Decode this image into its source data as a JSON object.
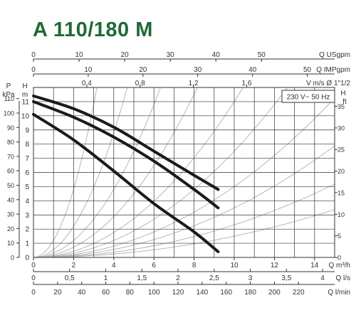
{
  "title": "A 110/180 M",
  "colors": {
    "title": "#1f6a36",
    "grid": "#333333",
    "curve": "#1a1a1a",
    "system": "#b0b0b0"
  },
  "chart_data": {
    "type": "line",
    "title": "A 110/180 M",
    "annotation": "230 V~ 50 Hz",
    "grid": true,
    "xlim": [
      0,
      15
    ],
    "ylim": [
      0,
      12
    ],
    "series": [
      {
        "name": "",
        "x": [
          0,
          2,
          4,
          6,
          8,
          9.2
        ],
        "y": [
          11.4,
          10.5,
          9.2,
          7.5,
          5.8,
          4.8
        ]
      },
      {
        "name": "",
        "x": [
          0,
          2,
          4,
          6,
          8,
          9.2
        ],
        "y": [
          11.0,
          9.9,
          8.5,
          6.8,
          4.8,
          3.5
        ]
      },
      {
        "name": "",
        "x": [
          0,
          2,
          4,
          6,
          8,
          9.2
        ],
        "y": [
          10.1,
          8.3,
          6.1,
          3.8,
          1.8,
          0.4
        ]
      }
    ],
    "system_curves_k": [
      1.2,
      0.55,
      0.3,
      0.18,
      0.11,
      0.075,
      0.05,
      0.035,
      0.023,
      0.015
    ],
    "axes": {
      "bottom": [
        {
          "unit": "Q m³/h",
          "max": 15,
          "ticks": [
            "0",
            "2",
            "4",
            "6",
            "8",
            "10",
            "12",
            "14"
          ],
          "values": [
            0,
            2,
            4,
            6,
            8,
            10,
            12,
            14
          ]
        },
        {
          "unit": "Q l/s",
          "max": 4.1667,
          "ticks": [
            "0",
            "0,5",
            "1",
            "1,5",
            "2",
            "2,5",
            "3",
            "3,5",
            "4"
          ],
          "values": [
            0,
            0.5,
            1,
            1.5,
            2,
            2.5,
            3,
            3.5,
            4
          ]
        },
        {
          "unit": "Q l/min",
          "max": 250,
          "ticks": [
            "0",
            "20",
            "40",
            "60",
            "80",
            "100",
            "120",
            "140",
            "160",
            "180",
            "200",
            "220"
          ],
          "values": [
            0,
            20,
            40,
            60,
            80,
            100,
            120,
            140,
            160,
            180,
            200,
            220
          ]
        }
      ],
      "top": [
        {
          "unit": "Q USgpm",
          "max": 66.04,
          "ticks": [
            "0",
            "10",
            "20",
            "30",
            "40",
            "50"
          ],
          "values": [
            0,
            10,
            20,
            30,
            40,
            50
          ]
        },
        {
          "unit": "Q IMPgpm",
          "max": 55.0,
          "ticks": [
            "0",
            "10",
            "20",
            "30",
            "40",
            "50"
          ],
          "values": [
            0,
            10,
            20,
            30,
            40,
            50
          ]
        },
        {
          "unit": "V m/s Ø 1\"1/2",
          "max": 2.26,
          "ticks": [
            "0,4",
            "0,8",
            "1,2",
            "1,6"
          ],
          "values": [
            0.4,
            0.8,
            1.2,
            1.6
          ]
        }
      ],
      "left_head": {
        "unit_top": "H",
        "unit_bottom": "m",
        "ticks": [
          "0",
          "1",
          "2",
          "3",
          "4",
          "5",
          "6",
          "7",
          "8",
          "9",
          "10",
          "11"
        ],
        "values": [
          0,
          1,
          2,
          3,
          4,
          5,
          6,
          7,
          8,
          9,
          10,
          11
        ]
      },
      "left_pressure": {
        "unit_top": "P",
        "unit_bottom": "kPa",
        "factor": 9.81,
        "ticks": [
          "0",
          "10",
          "20",
          "30",
          "40",
          "50",
          "60",
          "70",
          "80",
          "90",
          "100",
          "110"
        ],
        "values": [
          0,
          10,
          20,
          30,
          40,
          50,
          60,
          70,
          80,
          90,
          100,
          110
        ]
      },
      "right_head": {
        "unit_top": "H",
        "unit_bottom": "ft",
        "factor": 3.281,
        "ticks": [
          "0",
          "5",
          "10",
          "15",
          "20",
          "25",
          "30",
          "35"
        ],
        "values": [
          0,
          5,
          10,
          15,
          20,
          25,
          30,
          35
        ]
      }
    }
  }
}
